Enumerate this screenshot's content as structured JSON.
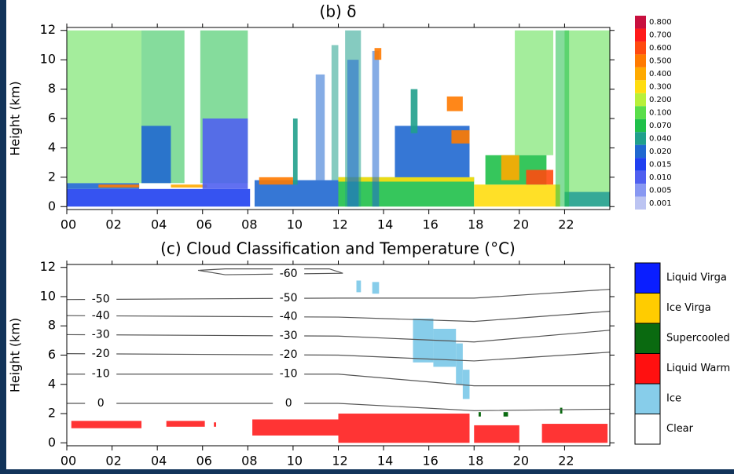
{
  "chart_data": [
    {
      "type": "heatmap",
      "title": "(b) δ",
      "ylabel": "Height (km)",
      "xlim": [
        0,
        24
      ],
      "ylim": [
        -0.2,
        12.2
      ],
      "xticks": [
        {
          "value": 0,
          "label": "00"
        },
        {
          "value": 2,
          "label": "02"
        },
        {
          "value": 4,
          "label": "04"
        },
        {
          "value": 6,
          "label": "06"
        },
        {
          "value": 8,
          "label": "08"
        },
        {
          "value": 10,
          "label": "10"
        },
        {
          "value": 12,
          "label": "12"
        },
        {
          "value": 14,
          "label": "14"
        },
        {
          "value": 16,
          "label": "16"
        },
        {
          "value": 18,
          "label": "18"
        },
        {
          "value": 20,
          "label": "20"
        },
        {
          "value": 22,
          "label": "22"
        }
      ],
      "yticks": [
        0,
        2,
        4,
        6,
        8,
        10,
        12
      ],
      "colorbar": {
        "levels": [
          {
            "value": 0.8,
            "label": "0.800"
          },
          {
            "value": 0.7,
            "label": "0.700"
          },
          {
            "value": 0.6,
            "label": "0.600"
          },
          {
            "value": 0.5,
            "label": "0.500"
          },
          {
            "value": 0.4,
            "label": "0.400"
          },
          {
            "value": 0.3,
            "label": "0.300"
          },
          {
            "value": 0.2,
            "label": "0.200"
          },
          {
            "value": 0.1,
            "label": "0.100"
          },
          {
            "value": 0.07,
            "label": "0.070"
          },
          {
            "value": 0.04,
            "label": "0.040"
          },
          {
            "value": 0.02,
            "label": "0.020"
          },
          {
            "value": 0.015,
            "label": "0.015"
          },
          {
            "value": 0.01,
            "label": "0.010"
          },
          {
            "value": 0.005,
            "label": "0.005"
          },
          {
            "value": 0.001,
            "label": "0.001"
          }
        ],
        "colors": [
          "#c8103f",
          "#ff1a1a",
          "#ff4a10",
          "#ff7a00",
          "#ffaa00",
          "#ffdd10",
          "#b8f03a",
          "#5ade4a",
          "#20c04a",
          "#20a08c",
          "#2068d0",
          "#2040f0",
          "#5060f0",
          "#8898f2",
          "#bcc4f2"
        ]
      },
      "regions": [
        {
          "x": [
            0,
            8.1
          ],
          "y": [
            0,
            1.2
          ],
          "delta": 0.015
        },
        {
          "x": [
            0,
            3.2
          ],
          "y": [
            1.2,
            1.6
          ],
          "delta": 0.02
        },
        {
          "x": [
            1.4,
            3.2
          ],
          "y": [
            1.3,
            1.5
          ],
          "delta": 0.5
        },
        {
          "x": [
            0,
            3.3
          ],
          "y": [
            1.6,
            12
          ],
          "delta": 0.1
        },
        {
          "x": [
            3.3,
            5.2
          ],
          "y": [
            1.6,
            12
          ],
          "delta": 0.07
        },
        {
          "x": [
            3.3,
            4.6
          ],
          "y": [
            1.6,
            5.5
          ],
          "delta": 0.02
        },
        {
          "x": [
            4.6,
            6.2
          ],
          "y": [
            1.3,
            1.5
          ],
          "delta": 0.4
        },
        {
          "x": [
            5.9,
            8.0
          ],
          "y": [
            1.6,
            12
          ],
          "delta": 0.07
        },
        {
          "x": [
            6.0,
            8.0
          ],
          "y": [
            1.2,
            6
          ],
          "delta": 0.01
        },
        {
          "x": [
            8.3,
            12
          ],
          "y": [
            0,
            1.8
          ],
          "delta": 0.02
        },
        {
          "x": [
            8.5,
            10
          ],
          "y": [
            1.5,
            2.0
          ],
          "delta": 0.5
        },
        {
          "x": [
            10,
            10.2
          ],
          "y": [
            1.5,
            6
          ],
          "delta": 0.04
        },
        {
          "x": [
            11.0,
            11.4
          ],
          "y": [
            1.8,
            9
          ],
          "delta": 0.02
        },
        {
          "x": [
            11.7,
            12.0
          ],
          "y": [
            1.8,
            11
          ],
          "delta": 0.04
        },
        {
          "x": [
            12,
            18
          ],
          "y": [
            0,
            2
          ],
          "delta": 0.07
        },
        {
          "x": [
            12,
            18
          ],
          "y": [
            1.7,
            2.0
          ],
          "delta": 0.3
        },
        {
          "x": [
            12.3,
            13.0
          ],
          "y": [
            0,
            12
          ],
          "delta": 0.04
        },
        {
          "x": [
            12.4,
            12.9
          ],
          "y": [
            0,
            10
          ],
          "delta": 0.02
        },
        {
          "x": [
            13.5,
            13.8
          ],
          "y": [
            0,
            10.6
          ],
          "delta": 0.02
        },
        {
          "x": [
            13.6,
            13.9
          ],
          "y": [
            10,
            10.8
          ],
          "delta": 0.5
        },
        {
          "x": [
            14.5,
            17.8
          ],
          "y": [
            2,
            5.5
          ],
          "delta": 0.02
        },
        {
          "x": [
            15.2,
            15.5
          ],
          "y": [
            5,
            8
          ],
          "delta": 0.04
        },
        {
          "x": [
            16.8,
            17.5
          ],
          "y": [
            6.5,
            7.5
          ],
          "delta": 0.5
        },
        {
          "x": [
            17,
            17.8
          ],
          "y": [
            4.3,
            5.2
          ],
          "delta": 0.5
        },
        {
          "x": [
            18,
            21.8
          ],
          "y": [
            0,
            1.5
          ],
          "delta": 0.3
        },
        {
          "x": [
            18.5,
            21.2
          ],
          "y": [
            1.5,
            3.5
          ],
          "delta": 0.07
        },
        {
          "x": [
            19.2,
            20
          ],
          "y": [
            1.8,
            3.5
          ],
          "delta": 0.4
        },
        {
          "x": [
            20.3,
            21.5
          ],
          "y": [
            1.5,
            2.5
          ],
          "delta": 0.6
        },
        {
          "x": [
            19.8,
            21.5
          ],
          "y": [
            3.5,
            12
          ],
          "delta": 0.1
        },
        {
          "x": [
            22,
            24
          ],
          "y": [
            0,
            1
          ],
          "delta": 0.04
        },
        {
          "x": [
            22,
            24
          ],
          "y": [
            1,
            12
          ],
          "delta": 0.1
        },
        {
          "x": [
            21.6,
            22.2
          ],
          "y": [
            0,
            12
          ],
          "delta": 0.07
        }
      ]
    },
    {
      "type": "classification",
      "title": "(c) Cloud Classification and Temperature (°C)",
      "ylabel": "Height (km)",
      "xlim": [
        0,
        24
      ],
      "ylim": [
        -0.2,
        12.2
      ],
      "xticks": [
        {
          "value": 0,
          "label": "00"
        },
        {
          "value": 2,
          "label": "02"
        },
        {
          "value": 4,
          "label": "04"
        },
        {
          "value": 6,
          "label": "06"
        },
        {
          "value": 8,
          "label": "08"
        },
        {
          "value": 10,
          "label": "10"
        },
        {
          "value": 12,
          "label": "12"
        },
        {
          "value": 14,
          "label": "14"
        },
        {
          "value": 16,
          "label": "16"
        },
        {
          "value": 18,
          "label": "18"
        },
        {
          "value": 20,
          "label": "20"
        },
        {
          "value": 22,
          "label": "22"
        }
      ],
      "yticks": [
        0,
        2,
        4,
        6,
        8,
        10,
        12
      ],
      "classes": [
        {
          "name": "Liquid Virga",
          "color": "#0a1eff"
        },
        {
          "name": "Ice Virga",
          "color": "#ffcc00"
        },
        {
          "name": "Supercooled",
          "color": "#0a6a10"
        },
        {
          "name": "Liquid Warm",
          "color": "#ff1010"
        },
        {
          "name": "Ice",
          "color": "#87cdea"
        },
        {
          "name": "Clear",
          "color": "#ffffff"
        }
      ],
      "contours": [
        {
          "level": -60,
          "x": [
            5.8,
            7,
            12.2,
            11.6,
            7,
            5.8
          ],
          "y": [
            11.8,
            11.5,
            11.6,
            11.9,
            11.9,
            11.8
          ]
        },
        {
          "level": -50,
          "x": [
            0,
            12,
            18,
            24
          ],
          "y": [
            9.8,
            9.9,
            9.9,
            10.5
          ]
        },
        {
          "level": -40,
          "x": [
            0,
            12,
            18,
            24
          ],
          "y": [
            8.7,
            8.6,
            8.3,
            9.0
          ]
        },
        {
          "level": -30,
          "x": [
            0,
            12,
            18,
            24
          ],
          "y": [
            7.4,
            7.3,
            6.9,
            7.7
          ]
        },
        {
          "level": -20,
          "x": [
            0,
            12,
            18,
            24
          ],
          "y": [
            6.1,
            6.0,
            5.6,
            6.2
          ]
        },
        {
          "level": -10,
          "x": [
            0,
            12,
            18,
            24
          ],
          "y": [
            4.7,
            4.7,
            3.9,
            3.9
          ]
        },
        {
          "level": 0,
          "x": [
            0,
            12,
            18,
            24
          ],
          "y": [
            2.7,
            2.7,
            2.2,
            2.3
          ]
        }
      ],
      "segments": [
        {
          "class": 3,
          "x": [
            0.2,
            3.3
          ],
          "y": [
            1.0,
            1.5
          ]
        },
        {
          "class": 3,
          "x": [
            4.4,
            6.1
          ],
          "y": [
            1.1,
            1.5
          ]
        },
        {
          "class": 3,
          "x": [
            6.5,
            6.6
          ],
          "y": [
            1.1,
            1.4
          ]
        },
        {
          "class": 3,
          "x": [
            8.2,
            12
          ],
          "y": [
            0.5,
            1.6
          ]
        },
        {
          "class": 3,
          "x": [
            12,
            17.8
          ],
          "y": [
            0,
            2.0
          ]
        },
        {
          "class": 3,
          "x": [
            18,
            20
          ],
          "y": [
            0,
            1.2
          ]
        },
        {
          "class": 3,
          "x": [
            21,
            23.9
          ],
          "y": [
            0,
            1.3
          ]
        },
        {
          "class": 4,
          "x": [
            12.8,
            13.0
          ],
          "y": [
            10.3,
            11.1
          ]
        },
        {
          "class": 4,
          "x": [
            13.5,
            13.8
          ],
          "y": [
            10.2,
            11.0
          ]
        },
        {
          "class": 4,
          "x": [
            15.3,
            16.2
          ],
          "y": [
            5.5,
            8.5
          ]
        },
        {
          "class": 4,
          "x": [
            16.2,
            17.2
          ],
          "y": [
            5.2,
            7.8
          ]
        },
        {
          "class": 4,
          "x": [
            17.2,
            17.5
          ],
          "y": [
            4.0,
            6.8
          ]
        },
        {
          "class": 4,
          "x": [
            17.5,
            17.8
          ],
          "y": [
            3.0,
            5.0
          ]
        },
        {
          "class": 2,
          "x": [
            18.2,
            18.3
          ],
          "y": [
            1.8,
            2.1
          ]
        },
        {
          "class": 2,
          "x": [
            19.3,
            19.5
          ],
          "y": [
            1.8,
            2.1
          ]
        },
        {
          "class": 2,
          "x": [
            21.8,
            21.9
          ],
          "y": [
            2.0,
            2.4
          ]
        }
      ]
    }
  ]
}
